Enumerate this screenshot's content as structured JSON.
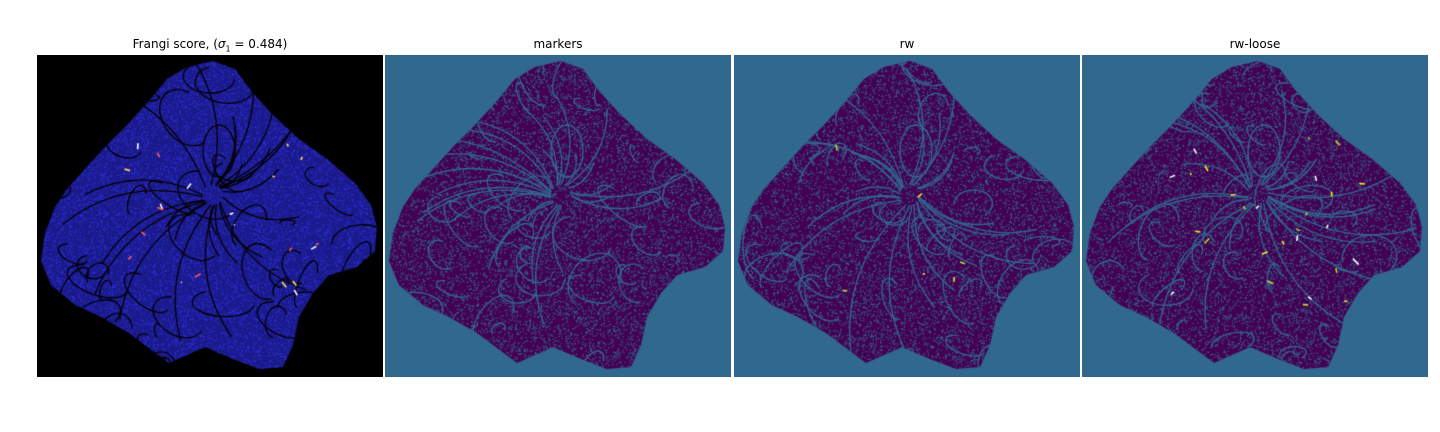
{
  "panels": [
    {
      "title_prefix": "Frangi score, (",
      "title_sigma": "σ",
      "title_sub": "1",
      "title_suffix": " = 0.484)",
      "background_color": "#000000",
      "tissue_color": "#1a1a8a",
      "tissue_noise_color": "#2f2fd8",
      "ridge_color": "#000000",
      "highlight_colors": [
        "#ffffff",
        "#ff6060",
        "#ffe060"
      ]
    },
    {
      "title": "markers",
      "background_color": "#31688e",
      "tissue_color": "#440154",
      "tissue_noise_color": "#31688e",
      "ridge_color": "#31688e",
      "highlight_colors": []
    },
    {
      "title": "rw",
      "background_color": "#31688e",
      "tissue_color": "#440154",
      "tissue_noise_color": "#31688e",
      "ridge_color": "#31688e",
      "highlight_colors": [
        "#fde725",
        "#b5de2b"
      ]
    },
    {
      "title": "rw-loose",
      "background_color": "#31688e",
      "tissue_color": "#440154",
      "tissue_noise_color": "#31688e",
      "ridge_color": "#31688e",
      "highlight_colors": [
        "#fde725",
        "#b5de2b",
        "#ffffff"
      ]
    }
  ]
}
